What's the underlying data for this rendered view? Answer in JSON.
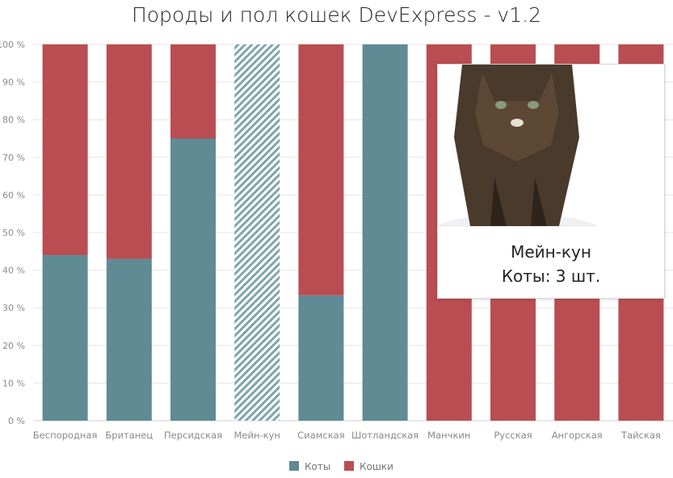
{
  "chart_data": {
    "type": "bar",
    "stacking": "full-stacked",
    "title": "Породы и пол кошек DevExpress - v1.2",
    "categories": [
      "Беспородная",
      "Британец",
      "Персидская",
      "Мейн-кун",
      "Сиамская",
      "Шотландская",
      "Манчкин",
      "Русская",
      "Ангорская",
      "Тайская"
    ],
    "series": [
      {
        "name": "Коты",
        "color": "#5f8b95",
        "values": [
          44,
          43,
          75,
          100,
          33.3,
          100,
          0,
          0,
          0,
          0
        ]
      },
      {
        "name": "Кошки",
        "color": "#ba4d51",
        "values": [
          56,
          57,
          25,
          0,
          66.7,
          0,
          100,
          100,
          100,
          100
        ]
      }
    ],
    "yticks": [
      "0 %",
      "10 %",
      "20 %",
      "30 %",
      "40 %",
      "50 %",
      "60 %",
      "70 %",
      "80 %",
      "90 %",
      "100 %"
    ],
    "ylim": [
      0,
      100
    ],
    "grid": true,
    "legend": "bottom-center",
    "hovered_category": "Мейн-кун"
  },
  "tooltip": {
    "image": "maine-coon-cat-photo",
    "title": "Мейн-кун",
    "value": "Коты: 3 шт."
  }
}
